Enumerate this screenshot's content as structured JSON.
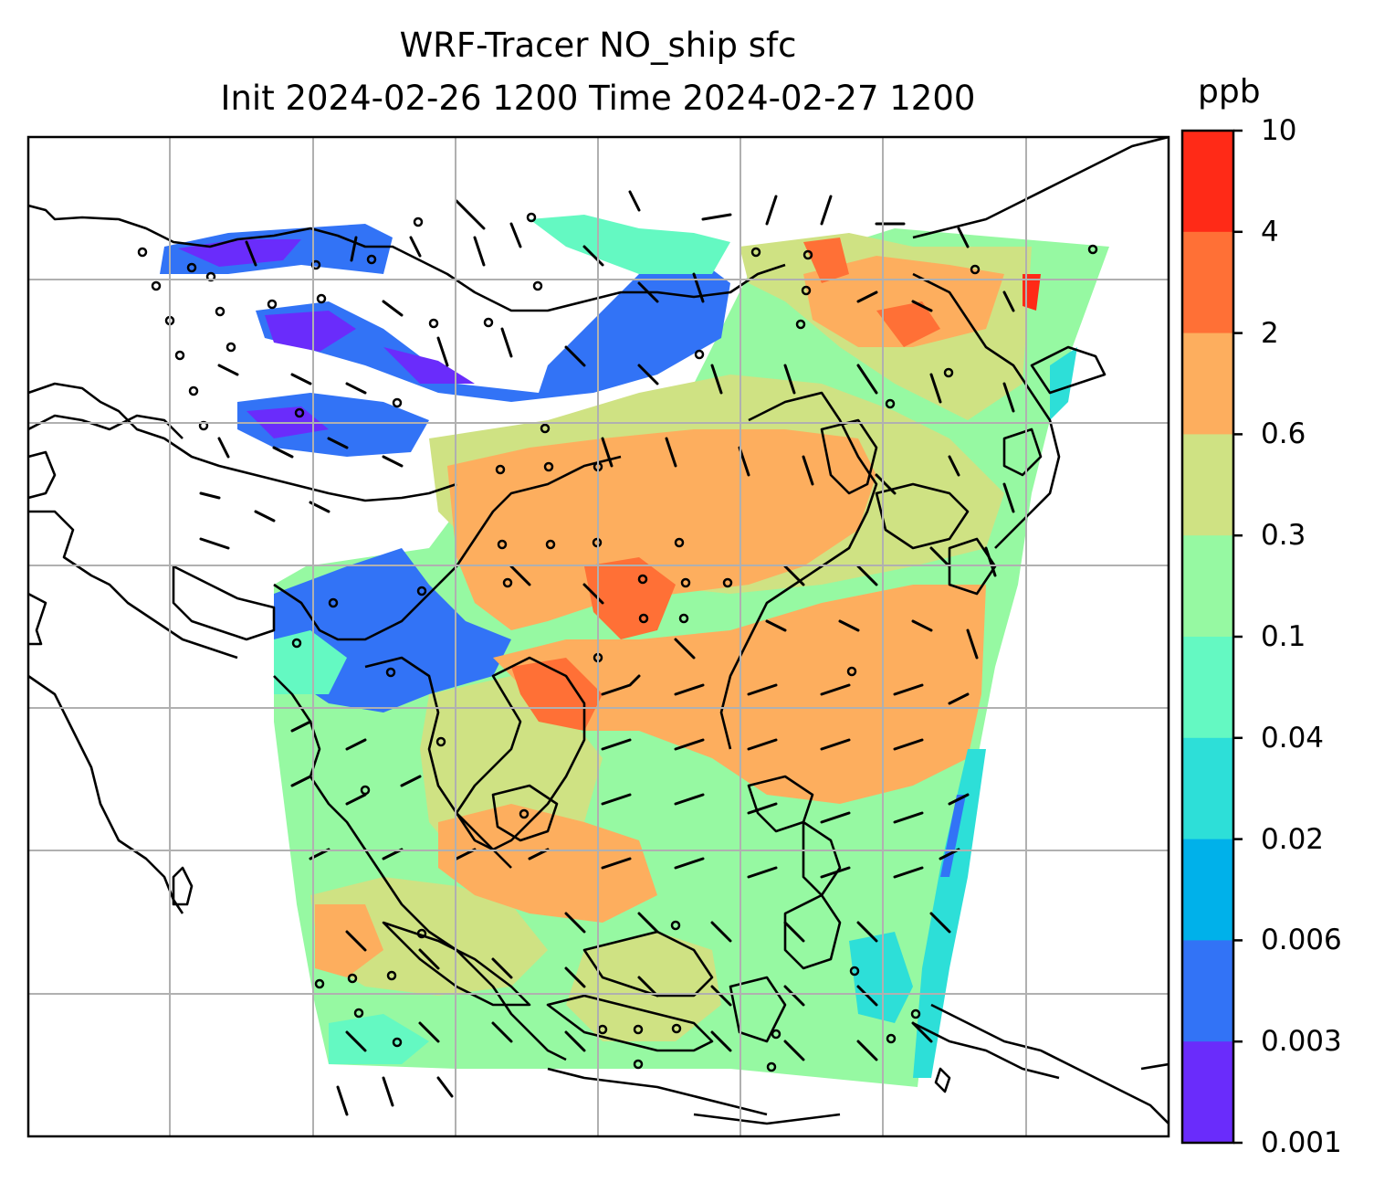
{
  "title": {
    "line1": "WRF-Tracer NO_ship sfc",
    "line2": "Init 2024-02-26 1200 Time 2024-02-27 1200"
  },
  "colorbar": {
    "unit": "ppb",
    "levels": [
      "10",
      "4",
      "2",
      "0.6",
      "0.3",
      "0.1",
      "0.04",
      "0.02",
      "0.006",
      "0.003",
      "0.001"
    ],
    "colors": [
      "#ff2a17",
      "#ff7036",
      "#fdae5e",
      "#cfe283",
      "#96f9a2",
      "#64f9c2",
      "#2ddfd8",
      "#00b1ea",
      "#3273f6",
      "#6a2cfb"
    ]
  },
  "map": {
    "grid_on": true,
    "coastlines": true,
    "wind_barbs": true,
    "field": "NO_ship surface concentration"
  }
}
